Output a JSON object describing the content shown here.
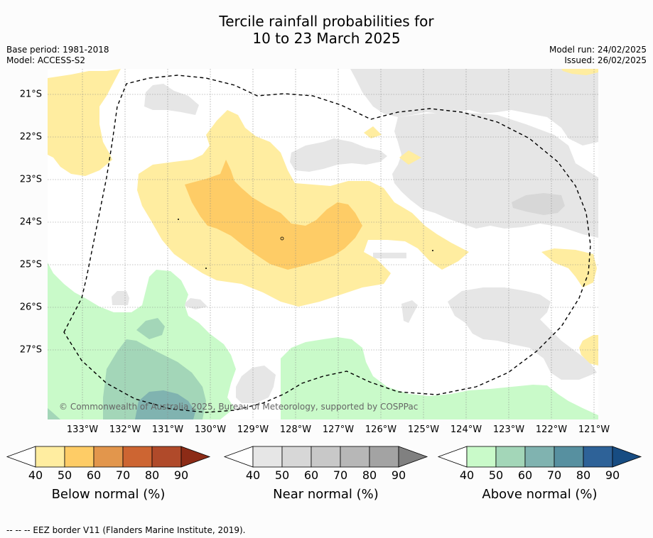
{
  "title_line1": "Tercile rainfall probabilities for",
  "title_line2": "10 to 23 March 2025",
  "base_period": "Base period: 1981-2018",
  "model": "Model: ACCESS-S2",
  "model_run": "Model run: 24/02/2025",
  "issued": "Issued: 26/02/2025",
  "copyright": "© Commonwealth of Australia 2025, Bureau of Meteorology, supported by COSPPac",
  "footnote": "--  --  -- EEZ border V11 (Flanders Marine Institute, 2019).",
  "latitudes": [
    "21°S",
    "22°S",
    "23°S",
    "24°S",
    "25°S",
    "26°S",
    "27°S"
  ],
  "longitudes": [
    "133°W",
    "132°W",
    "131°W",
    "130°W",
    "129°W",
    "128°W",
    "127°W",
    "126°W",
    "125°W",
    "124°W",
    "123°W",
    "122°W",
    "121°W"
  ],
  "colorbars": [
    {
      "label": "Below normal (%)",
      "ticks": [
        "40",
        "50",
        "60",
        "70",
        "80",
        "90"
      ],
      "colors": [
        "#ffeda0",
        "#fecc66",
        "#e2964c",
        "#cd6532",
        "#b04a2a",
        "#8c2b16"
      ]
    },
    {
      "label": "Near normal (%)",
      "ticks": [
        "40",
        "50",
        "60",
        "70",
        "80",
        "90"
      ],
      "colors": [
        "#e6e6e6",
        "#d7d7d7",
        "#c8c8c8",
        "#b7b7b7",
        "#a3a3a3",
        "#808080"
      ]
    },
    {
      "label": "Above normal (%)",
      "ticks": [
        "40",
        "50",
        "60",
        "70",
        "80",
        "90"
      ],
      "colors": [
        "#c9fac9",
        "#a3d6b8",
        "#80b3b0",
        "#5790a0",
        "#2e6298",
        "#174c82"
      ]
    }
  ]
}
